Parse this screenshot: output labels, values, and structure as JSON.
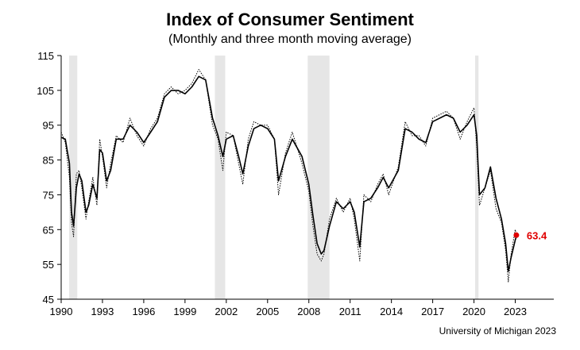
{
  "chart_data": {
    "type": "line",
    "title": "Index of Consumer Sentiment",
    "subtitle": "(Monthly and three month moving average)",
    "source": "University of Michigan 2023",
    "xlim": [
      1990,
      2025.8
    ],
    "ylim": [
      45,
      115
    ],
    "y_ticks": [
      45,
      55,
      65,
      75,
      85,
      95,
      105,
      115
    ],
    "x_ticks": [
      1990,
      1993,
      1996,
      1999,
      2002,
      2005,
      2008,
      2011,
      2014,
      2017,
      2020,
      2023
    ],
    "recessions": [
      [
        1990.58,
        1991.17
      ],
      [
        2001.17,
        2001.92
      ],
      [
        2007.92,
        2009.5
      ],
      [
        2020.08,
        2020.33
      ]
    ],
    "latest": {
      "x": 2023.08,
      "value": 63.4,
      "label": "63.4",
      "color": "#e00000"
    },
    "series": [
      {
        "name": "Monthly",
        "style": "dotted",
        "x": [
          1990.0,
          1990.3,
          1990.6,
          1990.75,
          1990.9,
          1991.1,
          1991.3,
          1991.5,
          1991.8,
          1992.0,
          1992.3,
          1992.6,
          1992.8,
          1993.0,
          1993.3,
          1993.6,
          1994.0,
          1994.5,
          1995.0,
          1995.5,
          1996.0,
          1996.5,
          1997.0,
          1997.5,
          1998.0,
          1998.5,
          1999.0,
          1999.5,
          2000.0,
          2000.5,
          2001.0,
          2001.4,
          2001.75,
          2002.0,
          2002.5,
          2002.9,
          2003.2,
          2003.6,
          2004.0,
          2004.5,
          2005.0,
          2005.5,
          2005.8,
          2006.3,
          2006.8,
          2007.5,
          2008.0,
          2008.3,
          2008.6,
          2008.9,
          2009.1,
          2009.5,
          2010.0,
          2010.5,
          2011.0,
          2011.3,
          2011.7,
          2012.0,
          2012.5,
          2013.0,
          2013.4,
          2013.8,
          2014.5,
          2015.0,
          2015.5,
          2016.0,
          2016.5,
          2017.0,
          2018.0,
          2018.5,
          2019.0,
          2019.5,
          2020.0,
          2020.2,
          2020.4,
          2020.8,
          2021.2,
          2021.6,
          2022.0,
          2022.3,
          2022.5,
          2022.7,
          2023.0,
          2023.08
        ],
        "values": [
          93.0,
          90.0,
          80.0,
          67.0,
          63.0,
          81.0,
          82.0,
          77.0,
          68.0,
          73.0,
          80.0,
          72.0,
          91.0,
          86.0,
          77.0,
          84.0,
          92.0,
          90.0,
          97.0,
          92.0,
          89.0,
          94.0,
          97.0,
          104.0,
          106.0,
          104.0,
          105.0,
          107.0,
          111.0,
          108.0,
          95.0,
          91.0,
          82.0,
          93.0,
          92.0,
          84.0,
          78.0,
          91.0,
          96.0,
          95.0,
          95.0,
          91.0,
          75.0,
          87.0,
          93.0,
          84.0,
          76.0,
          66.0,
          58.0,
          56.0,
          58.0,
          68.0,
          74.0,
          70.0,
          74.0,
          68.0,
          56.0,
          75.0,
          73.0,
          78.0,
          81.0,
          75.0,
          83.0,
          96.0,
          92.0,
          92.0,
          89.0,
          97.0,
          99.0,
          97.0,
          91.0,
          96.0,
          100.0,
          89.0,
          72.0,
          77.0,
          82.0,
          71.0,
          67.0,
          59.0,
          50.0,
          58.0,
          65.0,
          63.4
        ]
      },
      {
        "name": "Three month moving average",
        "style": "solid",
        "x": [
          1990.0,
          1990.3,
          1990.6,
          1990.75,
          1990.9,
          1991.1,
          1991.3,
          1991.5,
          1991.8,
          1992.0,
          1992.3,
          1992.6,
          1992.8,
          1993.0,
          1993.3,
          1993.6,
          1994.0,
          1994.5,
          1995.0,
          1995.5,
          1996.0,
          1996.5,
          1997.0,
          1997.5,
          1998.0,
          1998.5,
          1999.0,
          1999.5,
          2000.0,
          2000.5,
          2001.0,
          2001.4,
          2001.75,
          2002.0,
          2002.5,
          2002.9,
          2003.2,
          2003.6,
          2004.0,
          2004.5,
          2005.0,
          2005.5,
          2005.8,
          2006.3,
          2006.8,
          2007.5,
          2008.0,
          2008.3,
          2008.6,
          2008.9,
          2009.1,
          2009.5,
          2010.0,
          2010.5,
          2011.0,
          2011.3,
          2011.7,
          2012.0,
          2012.5,
          2013.0,
          2013.4,
          2013.8,
          2014.5,
          2015.0,
          2015.5,
          2016.0,
          2016.5,
          2017.0,
          2018.0,
          2018.5,
          2019.0,
          2019.5,
          2020.0,
          2020.2,
          2020.4,
          2020.8,
          2021.2,
          2021.6,
          2022.0,
          2022.3,
          2022.5,
          2022.7,
          2023.0,
          2023.08
        ],
        "values": [
          91.5,
          91.0,
          84.0,
          70.0,
          66.0,
          77.0,
          81.0,
          79.0,
          70.0,
          72.0,
          78.0,
          74.0,
          88.0,
          87.0,
          79.0,
          82.0,
          91.0,
          91.0,
          95.0,
          93.0,
          90.0,
          93.0,
          96.0,
          103.0,
          105.0,
          105.0,
          104.0,
          106.0,
          109.0,
          108.0,
          97.0,
          92.0,
          86.0,
          91.0,
          92.0,
          86.0,
          81.0,
          89.0,
          94.0,
          95.0,
          94.0,
          91.0,
          79.0,
          86.0,
          91.0,
          86.0,
          78.0,
          69.0,
          61.0,
          58.0,
          59.0,
          66.0,
          73.0,
          71.0,
          73.0,
          70.0,
          60.0,
          73.0,
          74.0,
          77.0,
          80.0,
          77.0,
          82.0,
          94.0,
          93.0,
          91.0,
          90.0,
          96.0,
          98.0,
          97.0,
          93.0,
          95.0,
          98.0,
          92.0,
          75.0,
          77.0,
          83.0,
          74.0,
          68.0,
          61.0,
          53.0,
          57.0,
          62.0,
          63.0
        ]
      }
    ]
  }
}
